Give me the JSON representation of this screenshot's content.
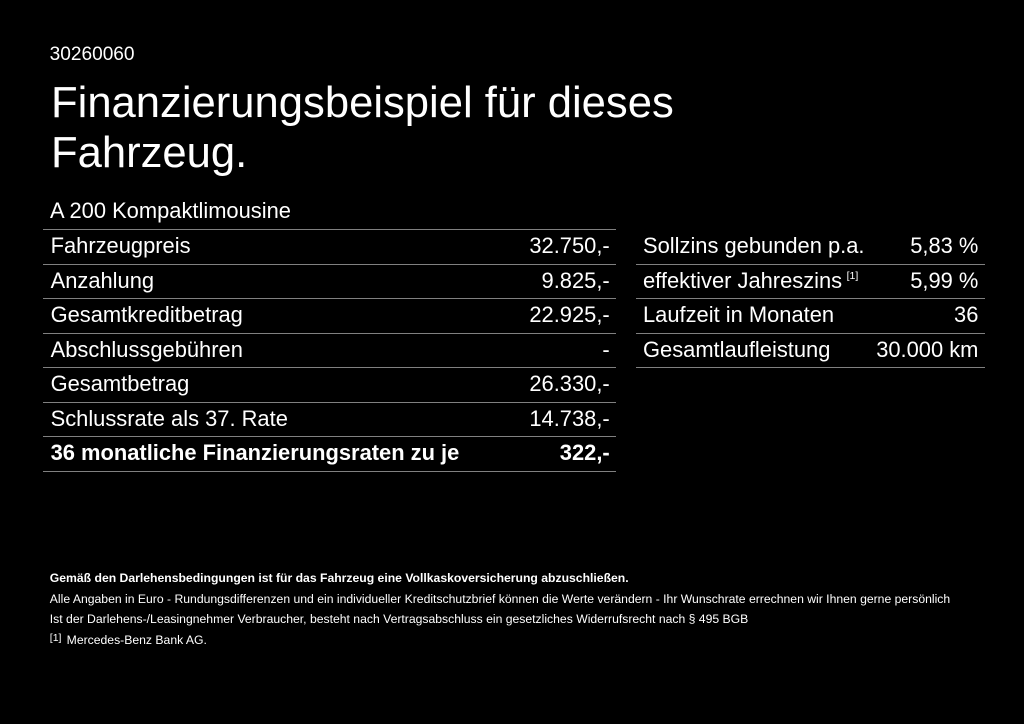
{
  "page": {
    "background_color": "#000000",
    "text_color": "#ffffff",
    "separator_line_color": "#808080"
  },
  "header": {
    "app_id": "30260060",
    "title_line1": "Finanzierungsbeispiel für dieses",
    "title_line2": "Fahrzeug.",
    "vehicle_model": "A 200 Kompaktlimousine"
  },
  "finance_table": {
    "rows": [
      {
        "label": "Fahrzeugpreis",
        "value": "32.750,-"
      },
      {
        "label": "Anzahlung",
        "value": "9.825,-"
      },
      {
        "label": "Gesamtkreditbetrag",
        "value": "22.925,-"
      },
      {
        "label": "Abschlussgebühren",
        "value": "-"
      },
      {
        "label": "Gesamtbetrag",
        "value": "26.330,-"
      },
      {
        "label": "Schlussrate als 37. Rate",
        "value": "14.738,-"
      },
      {
        "label": "36 monatliche Finanzierungsraten zu je",
        "value": "322,-",
        "bold": true
      }
    ]
  },
  "conditions_table": {
    "rows": [
      {
        "label": "Sollzins gebunden p.a.",
        "value": "5,83 %"
      },
      {
        "label": "effektiver Jahreszins",
        "footnote_marker": "[1]",
        "value": "5,99 %"
      },
      {
        "label": "Laufzeit in Monaten",
        "value": "36"
      },
      {
        "label": "Gesamtlaufleistung",
        "value": "30.000 km"
      }
    ]
  },
  "footer": {
    "insurance_note": "Gemäß den Darlehensbedingungen ist für das Fahrzeug eine Vollkaskoversicherung abzuschließen.",
    "disclaimer_line1": "Alle Angaben in Euro - Rundungsdifferenzen und ein individueller Kreditschutzbrief können die Werte verändern - Ihr Wunschrate errechnen wir Ihnen gerne persönlich",
    "disclaimer_line2": "Ist der Darlehens-/Leasingnehmer Verbraucher, besteht nach Vertragsabschluss ein gesetzliches Widerrufsrecht nach § 495 BGB",
    "footnote_marker": "[1]",
    "footnote_text": "Mercedes-Benz Bank AG."
  }
}
